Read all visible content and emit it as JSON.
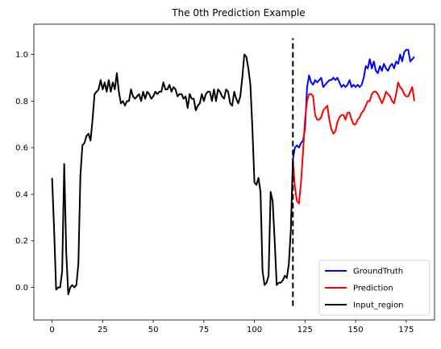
{
  "chart_data": {
    "type": "line",
    "title": "The 0th Prediction Example",
    "xlabel": "",
    "ylabel": "",
    "xlim": [
      -9,
      189
    ],
    "ylim": [
      -0.14,
      1.13
    ],
    "xticks": [
      0,
      25,
      50,
      75,
      100,
      125,
      150,
      175
    ],
    "yticks": [
      0.0,
      0.2,
      0.4,
      0.6,
      0.8,
      1.0
    ],
    "ytick_labels": [
      "0.0",
      "0.2",
      "0.4",
      "0.6",
      "0.8",
      "1.0"
    ],
    "grid": false,
    "legend": "lower-right",
    "vline": {
      "x": 119,
      "y_range": [
        -0.08,
        1.07
      ],
      "style": "dashed",
      "color": "#000000"
    },
    "series": [
      {
        "name": "GroundTruth",
        "color": "#0000ff",
        "x": [
          119,
          120,
          121,
          122,
          123,
          124,
          125,
          126,
          127,
          128,
          129,
          130,
          131,
          132,
          133,
          134,
          135,
          136,
          137,
          138,
          139,
          140,
          141,
          142,
          143,
          144,
          145,
          146,
          147,
          148,
          149,
          150,
          151,
          152,
          153,
          154,
          155,
          156,
          157,
          158,
          159,
          160,
          161,
          162,
          163,
          164,
          165,
          166,
          167,
          168,
          169,
          170,
          171,
          172,
          173,
          174,
          175,
          176,
          177,
          178,
          179
        ],
        "y": [
          0.55,
          0.6,
          0.61,
          0.6,
          0.62,
          0.63,
          0.68,
          0.86,
          0.91,
          0.88,
          0.87,
          0.89,
          0.88,
          0.89,
          0.9,
          0.86,
          0.87,
          0.88,
          0.89,
          0.89,
          0.9,
          0.89,
          0.9,
          0.88,
          0.86,
          0.87,
          0.86,
          0.87,
          0.89,
          0.86,
          0.87,
          0.86,
          0.87,
          0.86,
          0.87,
          0.9,
          0.95,
          0.94,
          0.98,
          0.94,
          0.97,
          0.93,
          0.92,
          0.95,
          0.93,
          0.96,
          0.94,
          0.93,
          0.95,
          0.96,
          0.94,
          0.97,
          0.96,
          1.0,
          0.97,
          1.01,
          1.02,
          1.02,
          0.97,
          0.98,
          0.99
        ]
      },
      {
        "name": "Prediction",
        "color": "#ff0000",
        "x": [
          119,
          120,
          121,
          122,
          123,
          124,
          125,
          126,
          127,
          128,
          129,
          130,
          131,
          132,
          133,
          134,
          135,
          136,
          137,
          138,
          139,
          140,
          141,
          142,
          143,
          144,
          145,
          146,
          147,
          148,
          149,
          150,
          151,
          152,
          153,
          154,
          155,
          156,
          157,
          158,
          159,
          160,
          161,
          162,
          163,
          164,
          165,
          166,
          167,
          168,
          169,
          170,
          171,
          172,
          173,
          174,
          175,
          176,
          177,
          178,
          179
        ],
        "y": [
          0.55,
          0.43,
          0.37,
          0.36,
          0.45,
          0.58,
          0.72,
          0.8,
          0.83,
          0.83,
          0.82,
          0.74,
          0.72,
          0.72,
          0.73,
          0.76,
          0.77,
          0.78,
          0.72,
          0.68,
          0.66,
          0.67,
          0.71,
          0.73,
          0.74,
          0.74,
          0.72,
          0.75,
          0.75,
          0.72,
          0.7,
          0.7,
          0.72,
          0.73,
          0.75,
          0.76,
          0.78,
          0.8,
          0.8,
          0.83,
          0.84,
          0.84,
          0.83,
          0.81,
          0.79,
          0.81,
          0.84,
          0.83,
          0.82,
          0.8,
          0.79,
          0.83,
          0.88,
          0.86,
          0.85,
          0.83,
          0.82,
          0.82,
          0.84,
          0.86,
          0.8
        ]
      },
      {
        "name": "Input_region",
        "color": "#000000",
        "x": [
          0,
          1,
          2,
          3,
          4,
          5,
          6,
          7,
          8,
          9,
          10,
          11,
          12,
          13,
          14,
          15,
          16,
          17,
          18,
          19,
          20,
          21,
          22,
          23,
          24,
          25,
          26,
          27,
          28,
          29,
          30,
          31,
          32,
          33,
          34,
          35,
          36,
          37,
          38,
          39,
          40,
          41,
          42,
          43,
          44,
          45,
          46,
          47,
          48,
          49,
          50,
          51,
          52,
          53,
          54,
          55,
          56,
          57,
          58,
          59,
          60,
          61,
          62,
          63,
          64,
          65,
          66,
          67,
          68,
          69,
          70,
          71,
          72,
          73,
          74,
          75,
          76,
          77,
          78,
          79,
          80,
          81,
          82,
          83,
          84,
          85,
          86,
          87,
          88,
          89,
          90,
          91,
          92,
          93,
          94,
          95,
          96,
          97,
          98,
          99,
          100,
          101,
          102,
          103,
          104,
          105,
          106,
          107,
          108,
          109,
          110,
          111,
          112,
          113,
          114,
          115,
          116,
          117,
          118,
          119
        ],
        "y": [
          0.47,
          0.25,
          -0.01,
          0.0,
          0.0,
          0.07,
          0.53,
          0.15,
          -0.03,
          0.0,
          0.01,
          0.0,
          0.01,
          0.1,
          0.48,
          0.61,
          0.62,
          0.65,
          0.66,
          0.63,
          0.72,
          0.83,
          0.84,
          0.85,
          0.89,
          0.85,
          0.88,
          0.84,
          0.89,
          0.84,
          0.88,
          0.85,
          0.92,
          0.84,
          0.79,
          0.8,
          0.78,
          0.8,
          0.8,
          0.85,
          0.82,
          0.81,
          0.82,
          0.83,
          0.8,
          0.84,
          0.81,
          0.84,
          0.83,
          0.81,
          0.82,
          0.84,
          0.83,
          0.84,
          0.84,
          0.88,
          0.85,
          0.85,
          0.87,
          0.84,
          0.86,
          0.85,
          0.82,
          0.83,
          0.83,
          0.81,
          0.82,
          0.77,
          0.83,
          0.81,
          0.81,
          0.76,
          0.78,
          0.79,
          0.83,
          0.8,
          0.83,
          0.84,
          0.84,
          0.8,
          0.85,
          0.8,
          0.85,
          0.84,
          0.82,
          0.81,
          0.85,
          0.84,
          0.79,
          0.78,
          0.84,
          0.81,
          0.79,
          0.82,
          0.9,
          1.0,
          0.99,
          0.94,
          0.87,
          0.68,
          0.45,
          0.44,
          0.47,
          0.41,
          0.07,
          0.01,
          0.02,
          0.05,
          0.41,
          0.37,
          0.2,
          0.01,
          0.02,
          0.02,
          0.03,
          0.05,
          0.04,
          0.1,
          0.25,
          0.55
        ]
      }
    ]
  }
}
